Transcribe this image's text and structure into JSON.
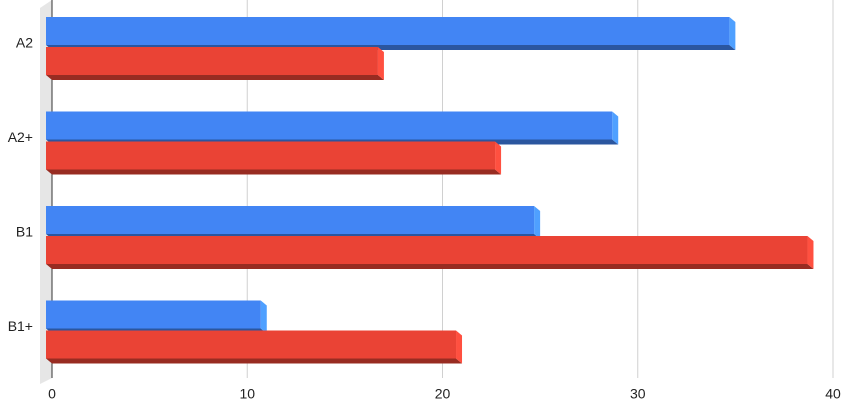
{
  "chart_data": {
    "type": "bar3d",
    "orientation": "horizontal",
    "categories": [
      "A2",
      "A2+",
      "B1",
      "B1+"
    ],
    "series": [
      {
        "color": "#4285f4",
        "values": [
          35,
          29,
          25,
          11
        ]
      },
      {
        "color": "#ea4335",
        "values": [
          17,
          23,
          39,
          21
        ]
      }
    ],
    "xlim": [
      0,
      40
    ],
    "xticks": [
      0,
      10,
      20,
      30,
      40
    ],
    "grid": true
  }
}
